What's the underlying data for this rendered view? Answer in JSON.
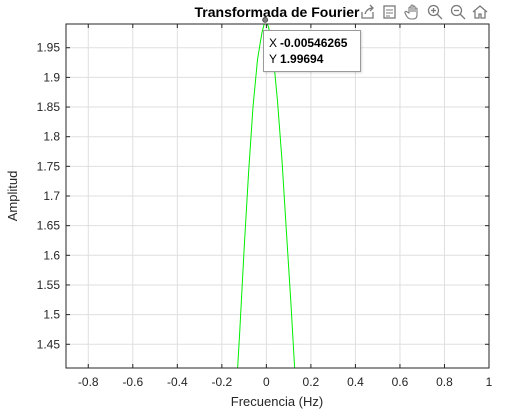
{
  "chart_data": {
    "type": "line",
    "title": "Transformada de Fourier",
    "xlabel": "Frecuencia (Hz)",
    "ylabel": "Amplitud",
    "xlim": [
      -0.9,
      1.0
    ],
    "ylim": [
      1.41,
      1.99
    ],
    "xticks": [
      "-0.8",
      "-0.6",
      "-0.4",
      "-0.2",
      "0",
      "0.2",
      "0.4",
      "0.6",
      "0.8",
      "1"
    ],
    "yticks": [
      "1.45",
      "1.5",
      "1.55",
      "1.6",
      "1.65",
      "1.7",
      "1.75",
      "1.8",
      "1.85",
      "1.9",
      "1.95"
    ],
    "grid": true,
    "series": [
      {
        "color": "#00ee00",
        "x": [
          -0.14,
          -0.12,
          -0.1,
          -0.08,
          -0.06,
          -0.04,
          -0.02,
          -0.00546265,
          0.01,
          0.03,
          0.05,
          0.07,
          0.09,
          0.11,
          0.13,
          0.145
        ],
        "y": [
          1.34,
          1.47,
          1.61,
          1.74,
          1.85,
          1.93,
          1.975,
          1.99694,
          1.985,
          1.94,
          1.86,
          1.76,
          1.64,
          1.52,
          1.39,
          1.32
        ]
      }
    ],
    "datatip": {
      "x_label": "X",
      "x_value": "-0.00546265",
      "y_label": "Y",
      "y_value": "1.99694",
      "x": -0.00546265,
      "y": 1.99694
    }
  },
  "toolbar": {
    "icons": [
      "export-icon",
      "brush-icon",
      "pan-icon",
      "zoom-in-icon",
      "zoom-out-icon",
      "home-icon"
    ]
  },
  "colors": {
    "grid": "#dfdfdf",
    "axes": "#262626",
    "line": "#00ee00"
  }
}
